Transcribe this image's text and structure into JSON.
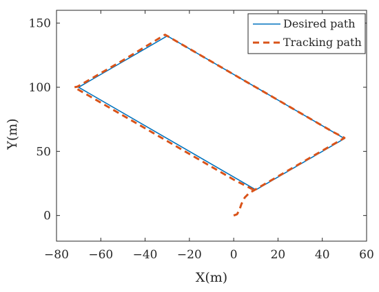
{
  "chart_data": {
    "type": "line",
    "title": "",
    "xlabel": "X(m)",
    "ylabel": "Y(m)",
    "xlim": [
      -80,
      60
    ],
    "ylim": [
      -20,
      160
    ],
    "xticks": [
      -80,
      -60,
      -40,
      -20,
      0,
      20,
      40,
      60
    ],
    "yticks": [
      0,
      50,
      100,
      150
    ],
    "xtick_labels": [
      "−80",
      "−60",
      "−40",
      "−20",
      "0",
      "20",
      "40",
      "60"
    ],
    "ytick_labels": [
      "0",
      "50",
      "100",
      "150"
    ],
    "grid": false,
    "legend_position": "top-right",
    "series": [
      {
        "name": "Desired path",
        "color": "#0072BD",
        "style": "solid",
        "x": [
          10,
          50,
          -30,
          -70,
          10
        ],
        "y": [
          20,
          60,
          140,
          100,
          20
        ]
      },
      {
        "name": "Tracking path",
        "color": "#D95319",
        "style": "dashed",
        "x": [
          0,
          1.5,
          2.5,
          3.5,
          5,
          7,
          9,
          20,
          35,
          50,
          45,
          30,
          10,
          -10,
          -30,
          -31,
          -50,
          -70.5,
          -72,
          -60,
          -40,
          -20,
          0,
          9
        ],
        "y": [
          0,
          1,
          4,
          9,
          14,
          17.5,
          19.5,
          30.5,
          45.5,
          60.5,
          65,
          80,
          100,
          120,
          140,
          141,
          121,
          100.5,
          100,
          88,
          68,
          48,
          28,
          20
        ]
      }
    ]
  }
}
